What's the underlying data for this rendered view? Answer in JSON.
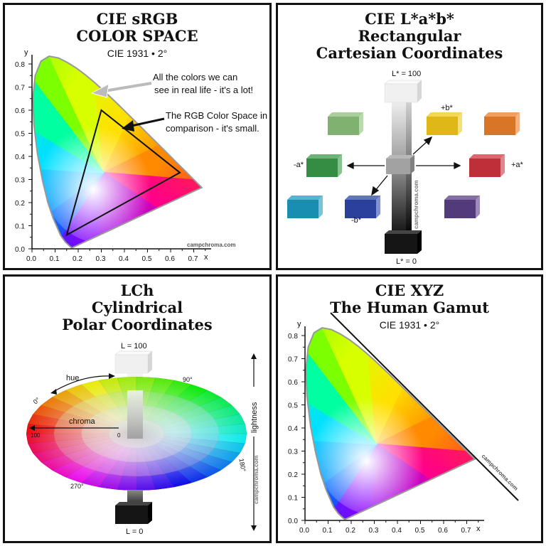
{
  "colors": {
    "border": "#111111",
    "lab_red": "#d0343f",
    "lab_yellow": "#f2c819",
    "lab_orange": "#ec7f2b",
    "lab_green_light": "#8cc07a",
    "lab_green": "#3a9a49",
    "lab_cyan": "#1c9bbf",
    "lab_blue": "#2f46a8",
    "lab_purple": "#5a3f86"
  },
  "panels": [
    {
      "title_lines": [
        "CIE sRGB",
        "COLOR SPACE"
      ],
      "subtitle": "CIE 1931 • 2°",
      "annotation_gamut": [
        "All the colors we can",
        "see in real life - it's a lot!"
      ],
      "annotation_rgb": [
        "The RGB Color Space in",
        "comparison - it's small."
      ],
      "x_ticks": [
        "0.0",
        "0.1",
        "0.2",
        "0.3",
        "0.4",
        "0.5",
        "0.6",
        "0.7"
      ],
      "y_ticks": [
        "0.0",
        "0.1",
        "0.2",
        "0.3",
        "0.4",
        "0.5",
        "0.6",
        "0.7",
        "0.8"
      ],
      "x_label": "x",
      "y_label": "y",
      "watermark": "campchroma.com",
      "rgb_triangle": {
        "red": [
          0.64,
          0.33
        ],
        "green": [
          0.3,
          0.6
        ],
        "blue": [
          0.15,
          0.06
        ]
      }
    },
    {
      "title_lines": [
        "CIE L*a*b*",
        "Rectangular",
        "Cartesian Coordinates"
      ],
      "label_l100": "L* = 100",
      "label_l0": "L* = 0",
      "label_pos_b": "+b*",
      "label_neg_b": "-b*",
      "label_pos_a": "+a*",
      "label_neg_a": "-a*",
      "watermark": "campchroma.com"
    },
    {
      "title_lines": [
        "LCh",
        "Cylindrical",
        "Polar Coordinates"
      ],
      "label_l100": "L = 100",
      "label_l0": "L = 0",
      "label_hue": "hue",
      "label_chroma": "chroma",
      "label_lightness": "lightness",
      "label_0deg": "0°",
      "label_90deg": "90°",
      "label_180deg": "180°",
      "label_270deg": "270°",
      "label_100": "100",
      "label_0": "0",
      "watermark": "campchroma.com"
    },
    {
      "title_lines": [
        "CIE XYZ",
        "The Human Gamut"
      ],
      "subtitle": "CIE 1931 • 2°",
      "x_ticks": [
        "0.0",
        "0.1",
        "0.2",
        "0.3",
        "0.4",
        "0.5",
        "0.6",
        "0.7"
      ],
      "y_ticks": [
        "0.0",
        "0.1",
        "0.2",
        "0.3",
        "0.4",
        "0.5",
        "0.6",
        "0.7",
        "0.8"
      ],
      "x_label": "x",
      "y_label": "y",
      "watermark": "campchroma.com"
    }
  ]
}
